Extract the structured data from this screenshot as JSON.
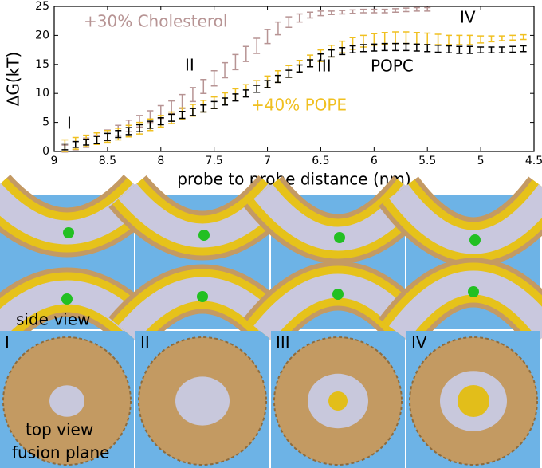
{
  "chart_data": {
    "type": "errorbar",
    "xlabel": "probe to probe distance (nm)",
    "ylabel": "ΔG(kT)",
    "xlim": [
      9,
      4.5
    ],
    "ylim": [
      0,
      25
    ],
    "xticks": [
      9,
      8.5,
      8,
      7.5,
      7,
      6.5,
      6,
      5.5,
      5,
      4.5
    ],
    "yticks": [
      0,
      5,
      10,
      15,
      20,
      25
    ],
    "annotations": [
      "I",
      "II",
      "III",
      "IV"
    ],
    "x": [
      8.9,
      8.8,
      8.7,
      8.6,
      8.5,
      8.4,
      8.3,
      8.2,
      8.1,
      8.0,
      7.9,
      7.8,
      7.7,
      7.6,
      7.5,
      7.4,
      7.3,
      7.2,
      7.1,
      7.0,
      6.9,
      6.8,
      6.7,
      6.6,
      6.5,
      6.4,
      6.3,
      6.2,
      6.1,
      6.0,
      5.9,
      5.8,
      5.7,
      5.6,
      5.5,
      5.4,
      5.3,
      5.2,
      5.1,
      5.0,
      4.9,
      4.8,
      4.7,
      4.6
    ],
    "series": [
      {
        "name": "+30% Cholesterol",
        "color": "#b79494",
        "values": [
          0.5,
          1.0,
          1.5,
          2.0,
          2.8,
          3.6,
          4.4,
          5.2,
          6.0,
          6.8,
          7.6,
          8.6,
          9.8,
          11.2,
          12.6,
          14.0,
          15.4,
          16.8,
          18.2,
          19.8,
          21.2,
          22.3,
          23.0,
          23.5,
          23.8,
          23.9,
          24.0,
          24.1,
          24.2,
          24.2,
          24.2,
          24.3,
          24.4,
          24.5,
          24.5,
          null,
          null,
          null,
          null,
          null,
          null,
          null,
          null,
          null
        ],
        "errors": [
          0.6,
          0.7,
          0.8,
          0.8,
          0.9,
          0.9,
          1.0,
          1.0,
          1.0,
          1.1,
          1.1,
          1.2,
          1.2,
          1.2,
          1.3,
          1.3,
          1.3,
          1.3,
          1.3,
          1.2,
          1.1,
          0.9,
          0.7,
          0.5,
          0.4,
          0.3,
          0.3,
          0.3,
          0.3,
          0.3,
          0.3,
          0.3,
          0.3,
          0.3,
          0.3,
          null,
          null,
          null,
          null,
          null,
          null,
          null,
          null,
          null
        ]
      },
      {
        "name": "+40% POPE",
        "color": "#f0c020",
        "values": [
          1.0,
          1.4,
          1.8,
          2.2,
          2.6,
          3.0,
          3.5,
          4.0,
          4.6,
          5.2,
          5.8,
          6.5,
          7.1,
          7.8,
          8.4,
          9.1,
          9.8,
          10.5,
          11.2,
          12.0,
          12.9,
          13.8,
          14.7,
          15.6,
          16.5,
          17.3,
          18.0,
          18.6,
          19.0,
          19.3,
          19.5,
          19.6,
          19.6,
          19.5,
          19.4,
          19.3,
          19.2,
          19.2,
          19.2,
          19.3,
          19.4,
          19.5,
          19.6,
          19.7
        ],
        "errors": [
          1.0,
          1.0,
          1.0,
          1.0,
          1.0,
          1.0,
          1.0,
          1.0,
          1.0,
          1.0,
          1.0,
          1.0,
          1.0,
          1.0,
          1.0,
          1.0,
          1.0,
          1.0,
          1.0,
          1.0,
          1.0,
          1.0,
          1.0,
          1.0,
          1.0,
          1.0,
          1.0,
          1.0,
          1.0,
          1.0,
          1.0,
          1.0,
          1.0,
          1.0,
          1.0,
          0.9,
          0.8,
          0.8,
          0.8,
          0.6,
          0.5,
          0.4,
          0.4,
          0.4
        ]
      },
      {
        "name": "POPC",
        "color": "#000000",
        "values": [
          0.8,
          1.2,
          1.6,
          2.0,
          2.5,
          3.0,
          3.5,
          4.0,
          4.6,
          5.2,
          5.8,
          6.3,
          6.8,
          7.4,
          8.0,
          8.6,
          9.3,
          10.0,
          10.8,
          11.6,
          12.5,
          13.4,
          14.3,
          15.2,
          16.2,
          16.9,
          17.3,
          17.6,
          17.8,
          17.9,
          18.0,
          18.0,
          18.0,
          17.9,
          17.8,
          17.7,
          17.6,
          17.5,
          17.5,
          17.5,
          17.5,
          17.5,
          17.6,
          17.7
        ],
        "errors": [
          0.5,
          0.5,
          0.5,
          0.6,
          0.6,
          0.6,
          0.6,
          0.6,
          0.6,
          0.6,
          0.6,
          0.6,
          0.6,
          0.6,
          0.6,
          0.6,
          0.6,
          0.6,
          0.6,
          0.6,
          0.6,
          0.6,
          0.6,
          0.6,
          0.6,
          0.6,
          0.6,
          0.6,
          0.6,
          0.6,
          0.6,
          0.6,
          0.6,
          0.6,
          0.6,
          0.6,
          0.6,
          0.6,
          0.6,
          0.5,
          0.5,
          0.5,
          0.5,
          0.5
        ]
      }
    ]
  },
  "panels": {
    "side_label": "side view",
    "top_labels": [
      "I",
      "II",
      "III",
      "IV"
    ],
    "top_caption": [
      "top view",
      "fusion plane"
    ]
  }
}
